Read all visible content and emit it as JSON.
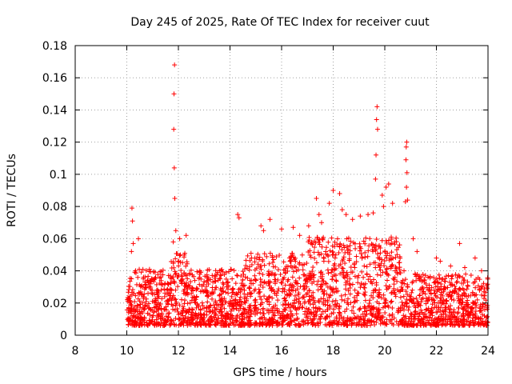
{
  "chart_data": {
    "type": "scatter",
    "title": "Day 245 of 2025, Rate Of TEC Index for receiver cuut",
    "xlabel": "GPS time / hours",
    "ylabel": "ROTI / TECUs",
    "xlim": [
      8,
      24
    ],
    "ylim": [
      0,
      0.18
    ],
    "xticks": [
      8,
      10,
      12,
      14,
      16,
      18,
      20,
      22,
      24
    ],
    "xtick_labels": [
      "8",
      "10",
      "12",
      "14",
      "16",
      "18",
      "20",
      "22",
      "24"
    ],
    "yticks": [
      0,
      0.02,
      0.04,
      0.06,
      0.08,
      0.1,
      0.12,
      0.14,
      0.16,
      0.18
    ],
    "ytick_labels": [
      "0",
      "0.02",
      "0.04",
      "0.06",
      "0.08",
      "0.1",
      "0.12",
      "0.14",
      "0.16",
      "0.18"
    ],
    "grid": true,
    "marker": "+",
    "color": "#ff0000",
    "series": [
      {
        "name": "ROTI",
        "points": [
          [
            10.2,
            0.079
          ],
          [
            10.22,
            0.071
          ],
          [
            10.25,
            0.057
          ],
          [
            10.18,
            0.052
          ],
          [
            10.45,
            0.06
          ],
          [
            11.85,
            0.168
          ],
          [
            11.83,
            0.15
          ],
          [
            11.82,
            0.128
          ],
          [
            11.84,
            0.104
          ],
          [
            11.86,
            0.085
          ],
          [
            11.9,
            0.065
          ],
          [
            12.05,
            0.06
          ],
          [
            12.3,
            0.062
          ],
          [
            11.8,
            0.058
          ],
          [
            14.3,
            0.075
          ],
          [
            14.35,
            0.073
          ],
          [
            15.2,
            0.068
          ],
          [
            15.3,
            0.065
          ],
          [
            15.55,
            0.072
          ],
          [
            16.0,
            0.066
          ],
          [
            16.45,
            0.067
          ],
          [
            16.7,
            0.062
          ],
          [
            17.05,
            0.068
          ],
          [
            17.35,
            0.085
          ],
          [
            17.45,
            0.075
          ],
          [
            17.55,
            0.07
          ],
          [
            17.85,
            0.082
          ],
          [
            18.0,
            0.09
          ],
          [
            18.25,
            0.088
          ],
          [
            18.35,
            0.078
          ],
          [
            18.5,
            0.075
          ],
          [
            18.75,
            0.072
          ],
          [
            19.05,
            0.074
          ],
          [
            19.35,
            0.075
          ],
          [
            19.55,
            0.076
          ],
          [
            19.7,
            0.142
          ],
          [
            19.68,
            0.134
          ],
          [
            19.72,
            0.128
          ],
          [
            19.66,
            0.112
          ],
          [
            19.64,
            0.097
          ],
          [
            19.9,
            0.087
          ],
          [
            20.05,
            0.092
          ],
          [
            20.15,
            0.094
          ],
          [
            20.3,
            0.082
          ],
          [
            19.95,
            0.08
          ],
          [
            20.85,
            0.12
          ],
          [
            20.83,
            0.117
          ],
          [
            20.82,
            0.109
          ],
          [
            20.86,
            0.101
          ],
          [
            20.84,
            0.092
          ],
          [
            20.88,
            0.084
          ],
          [
            20.8,
            0.083
          ],
          [
            21.1,
            0.06
          ],
          [
            21.25,
            0.052
          ],
          [
            22.0,
            0.048
          ],
          [
            22.15,
            0.046
          ],
          [
            22.55,
            0.043
          ],
          [
            22.9,
            0.057
          ],
          [
            23.1,
            0.042
          ],
          [
            23.5,
            0.048
          ],
          [
            23.75,
            0.04
          ],
          [
            23.95,
            0.031
          ],
          [
            10.05,
            0.022
          ],
          [
            10.6,
            0.03
          ]
        ]
      }
    ]
  }
}
